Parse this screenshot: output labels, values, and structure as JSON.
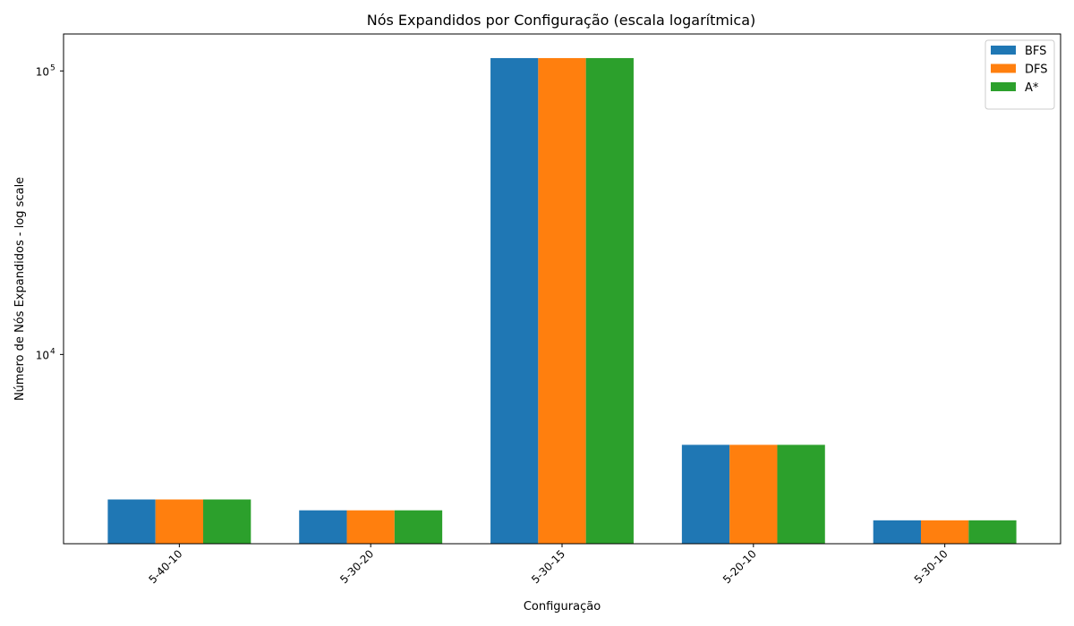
{
  "chart_data": {
    "type": "bar",
    "title": "Nós Expandidos por Configuração (escala logarítmica)",
    "xlabel": "Configuração",
    "ylabel": "Número de Nós Expandidos - log scale",
    "yscale": "log",
    "ylim": [
      2150,
      135000
    ],
    "y_ticks": [
      {
        "value": 10000,
        "base": "10",
        "exp": "4"
      },
      {
        "value": 100000,
        "base": "10",
        "exp": "5"
      }
    ],
    "categories": [
      "5-40-10",
      "5-30-20",
      "5-30-15",
      "5-20-10",
      "5-30-10"
    ],
    "series": [
      {
        "name": "BFS",
        "color": "#1f77b4",
        "values": [
          3080,
          2820,
          111000,
          4800,
          2600
        ]
      },
      {
        "name": "DFS",
        "color": "#ff7f0e",
        "values": [
          3080,
          2820,
          111000,
          4800,
          2600
        ]
      },
      {
        "name": "A*",
        "color": "#2ca02c",
        "values": [
          3080,
          2820,
          111000,
          4800,
          2600
        ]
      }
    ],
    "grid": false,
    "legend_position": "top-right",
    "xtick_rotation": 45
  }
}
